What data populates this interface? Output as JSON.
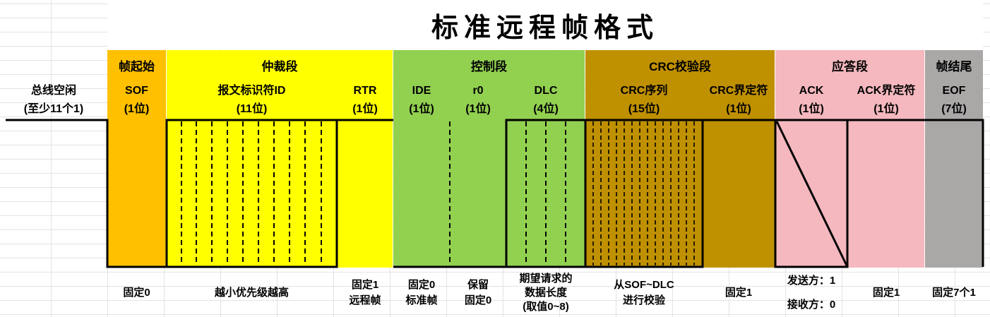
{
  "title": "标准远程帧格式",
  "colors": {
    "sof": "#ffc000",
    "arbitration": "#ffff00",
    "control": "#92d050",
    "crc": "#bf9000",
    "ack": "#f4b8be",
    "eof": "#aaa7a7"
  },
  "sections": {
    "sof": "帧起始",
    "arbitration": "仲裁段",
    "control": "控制段",
    "crc": "CRC校验段",
    "ack": "应答段",
    "eof": "帧结尾"
  },
  "fields": {
    "idle": {
      "name": "总线空闲",
      "bits": "(至少11个1)"
    },
    "sof": {
      "name": "SOF",
      "bits": "(1位)"
    },
    "id": {
      "name": "报文标识符ID",
      "bits": "(11位)"
    },
    "rtr": {
      "name": "RTR",
      "bits": "(1位)"
    },
    "ide": {
      "name": "IDE",
      "bits": "(1位)"
    },
    "r0": {
      "name": "r0",
      "bits": "(1位)"
    },
    "dlc": {
      "name": "DLC",
      "bits": "(4位)"
    },
    "crc_seq": {
      "name": "CRC序列",
      "bits": "(15位)"
    },
    "crc_del": {
      "name": "CRC界定符",
      "bits": "(1位)"
    },
    "ack": {
      "name": "ACK",
      "bits": "(1位)"
    },
    "ack_del": {
      "name": "ACK界定符",
      "bits": "(1位)"
    },
    "eof": {
      "name": "EOF",
      "bits": "(7位)"
    }
  },
  "descriptions": {
    "sof": [
      "固定0"
    ],
    "id": [
      "越小优先级越高"
    ],
    "rtr": [
      "固定1",
      "远程帧"
    ],
    "ide": [
      "固定0",
      "标准帧"
    ],
    "r0": [
      "保留",
      "固定0"
    ],
    "dlc": [
      "期望请求的",
      "数据长度",
      "(取值0~8)"
    ],
    "crc_seq": [
      "从SOF~DLC",
      "进行校验"
    ],
    "crc_del": [
      "固定1"
    ],
    "ack": [
      "发送方：1",
      "接收方：0"
    ],
    "ack_del": [
      "固定1"
    ],
    "eof": [
      "固定7个1"
    ]
  }
}
